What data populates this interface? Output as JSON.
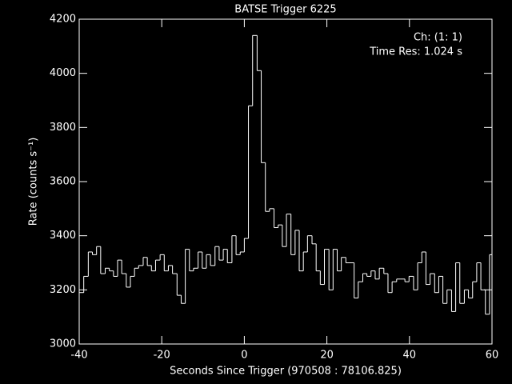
{
  "chart_data": {
    "type": "step",
    "title": "BATSE Trigger 6225",
    "annotations": [
      "Ch: (1: 1)",
      "Time Res: 1.024 s"
    ],
    "xlabel": "Seconds Since Trigger (970508 : 78106.825)",
    "ylabel": "Rate (counts s⁻¹)",
    "color": "#ffffff",
    "xlim": [
      -40,
      60
    ],
    "xticks": [
      -40,
      -20,
      0,
      20,
      40,
      60
    ],
    "ylim": [
      3000,
      4200
    ],
    "yticks": [
      3000,
      3200,
      3400,
      3600,
      3800,
      4000,
      4200
    ],
    "x": [
      -39.9,
      -38.9,
      -37.8,
      -36.8,
      -35.8,
      -34.8,
      -33.7,
      -32.7,
      -31.7,
      -30.7,
      -29.7,
      -28.6,
      -27.6,
      -26.6,
      -25.6,
      -24.5,
      -23.5,
      -22.5,
      -21.5,
      -20.4,
      -19.4,
      -18.4,
      -17.4,
      -16.3,
      -15.3,
      -14.3,
      -13.3,
      -12.3,
      -11.2,
      -10.2,
      -9.2,
      -8.2,
      -7.1,
      -6.1,
      -5.1,
      -4.1,
      -3.0,
      -2.0,
      -1.0,
      0.0,
      1.0,
      2.0,
      3.1,
      4.1,
      5.1,
      6.1,
      7.2,
      8.2,
      9.2,
      10.2,
      11.3,
      12.3,
      13.3,
      14.3,
      15.3,
      16.4,
      17.4,
      18.4,
      19.4,
      20.5,
      21.5,
      22.5,
      23.5,
      24.6,
      25.6,
      26.6,
      27.6,
      28.7,
      29.7,
      30.7,
      31.7,
      32.7,
      33.8,
      34.8,
      35.8,
      36.9,
      37.9,
      38.9,
      39.9,
      41.0,
      42.0,
      43.0,
      44.0,
      45.0,
      46.1,
      47.1,
      48.1,
      49.1,
      50.2,
      51.2,
      52.2,
      53.3,
      54.3,
      55.3,
      56.3,
      57.3,
      58.4,
      59.4
    ],
    "values": [
      3190,
      3250,
      3340,
      3330,
      3360,
      3260,
      3280,
      3270,
      3250,
      3310,
      3260,
      3210,
      3250,
      3280,
      3290,
      3320,
      3290,
      3270,
      3310,
      3330,
      3270,
      3290,
      3260,
      3180,
      3150,
      3350,
      3270,
      3280,
      3340,
      3280,
      3330,
      3290,
      3360,
      3310,
      3350,
      3300,
      3400,
      3330,
      3340,
      3390,
      3880,
      4140,
      4010,
      3670,
      3490,
      3500,
      3430,
      3440,
      3360,
      3480,
      3330,
      3420,
      3270,
      3340,
      3400,
      3370,
      3270,
      3220,
      3350,
      3200,
      3350,
      3270,
      3320,
      3300,
      3300,
      3170,
      3230,
      3260,
      3250,
      3270,
      3240,
      3280,
      3260,
      3190,
      3230,
      3240,
      3240,
      3230,
      3250,
      3200,
      3300,
      3340,
      3220,
      3260,
      3190,
      3250,
      3150,
      3200,
      3120,
      3300,
      3150,
      3200,
      3170,
      3230,
      3300,
      3200,
      3110,
      3330
    ]
  }
}
